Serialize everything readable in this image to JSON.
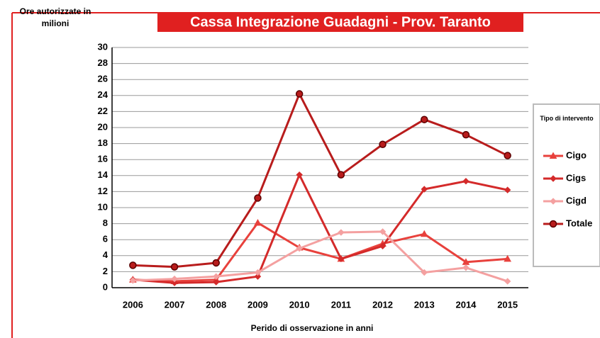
{
  "chart_data": {
    "type": "line",
    "title": "Cassa Integrazione Guadagni - Prov. Taranto",
    "y_label": "Ore autorizzate in milioni",
    "x_label": "Perido di osservazione in anni",
    "legend_title": "Tipo di intervento",
    "legend_position": "right",
    "grid": true,
    "categories": [
      "2006",
      "2007",
      "2008",
      "2009",
      "2010",
      "2011",
      "2012",
      "2013",
      "2014",
      "2015"
    ],
    "ylim": [
      0,
      30
    ],
    "yticks": [
      0,
      2,
      4,
      6,
      8,
      10,
      12,
      14,
      16,
      18,
      20,
      22,
      24,
      26,
      28,
      30
    ],
    "series": [
      {
        "name": "Cigo",
        "color": "#e8413c",
        "marker": "triangle",
        "values": [
          1.0,
          0.8,
          1.0,
          8.1,
          5.0,
          3.6,
          5.5,
          6.7,
          3.2,
          3.6
        ]
      },
      {
        "name": "Cigs",
        "color": "#d42a2a",
        "marker": "diamond",
        "values": [
          1.0,
          0.6,
          0.7,
          1.4,
          14.1,
          3.6,
          5.2,
          12.3,
          13.3,
          12.2
        ]
      },
      {
        "name": "Cigd",
        "color": "#f4a0a0",
        "marker": "diamond",
        "values": [
          0.9,
          1.1,
          1.4,
          1.9,
          4.9,
          6.9,
          7.0,
          1.9,
          2.5,
          0.8
        ]
      },
      {
        "name": "Totale",
        "color": "#b81c1c",
        "marker": "circle",
        "values": [
          2.8,
          2.6,
          3.1,
          11.2,
          24.2,
          14.1,
          17.9,
          21.0,
          19.1,
          16.5
        ]
      }
    ]
  }
}
